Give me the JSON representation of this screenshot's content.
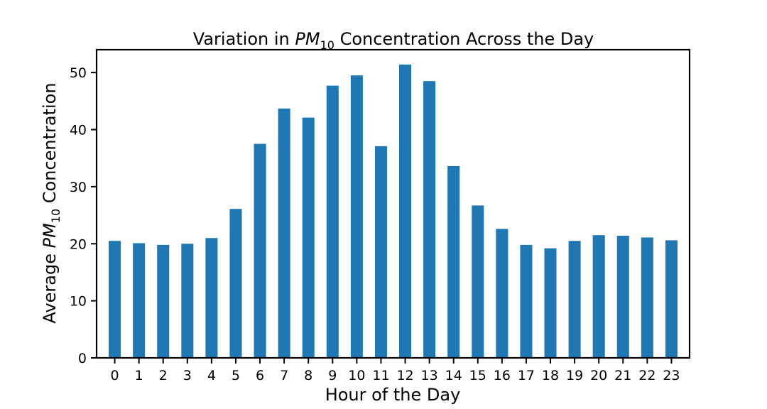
{
  "chart_data": {
    "type": "bar",
    "title": {
      "prefix": "Variation in ",
      "symbol": "PM",
      "subscript": "10",
      "suffix": " Concentration Across the Day"
    },
    "xlabel": "Hour of the Day",
    "ylabel": {
      "prefix": "Average ",
      "symbol": "PM",
      "subscript": "10",
      "suffix": " Concentration"
    },
    "categories": [
      "0",
      "1",
      "2",
      "3",
      "4",
      "5",
      "6",
      "7",
      "8",
      "9",
      "10",
      "11",
      "12",
      "13",
      "14",
      "15",
      "16",
      "17",
      "18",
      "19",
      "20",
      "21",
      "22",
      "23"
    ],
    "values": [
      20.5,
      20.1,
      19.8,
      20.0,
      21.0,
      26.1,
      37.5,
      43.7,
      42.1,
      47.7,
      49.5,
      37.1,
      51.4,
      48.5,
      33.6,
      26.7,
      22.6,
      19.8,
      19.2,
      20.5,
      21.5,
      21.4,
      21.1,
      20.6
    ],
    "ylim": [
      0,
      54
    ],
    "yticks": [
      "0",
      "10",
      "20",
      "30",
      "40",
      "50"
    ],
    "grid": false,
    "bar_color": "#1f77b4"
  }
}
